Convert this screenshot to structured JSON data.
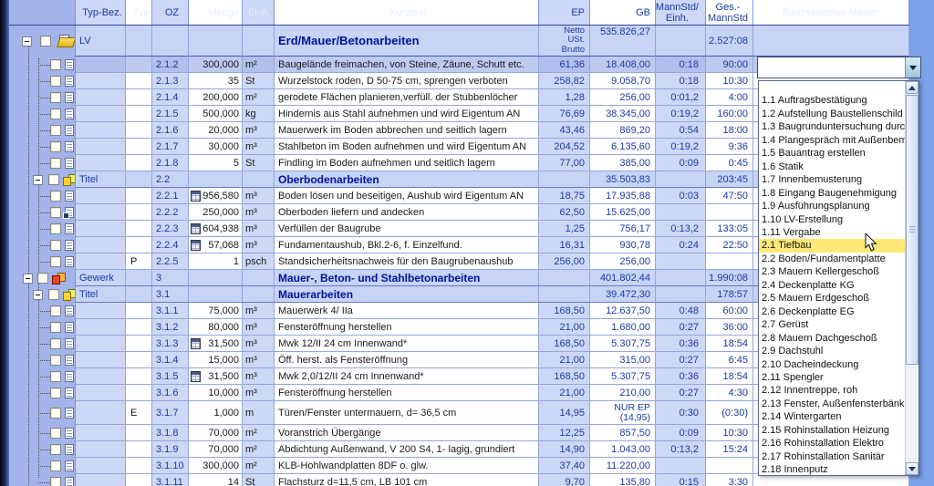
{
  "colors": {
    "header_blue": "#5570cc",
    "group_row": "#c6d4f6",
    "highlight_yellow": "#ffe878",
    "value_navy": "#1c3aa0",
    "window_background": "#7ba2e8"
  },
  "columns": [
    {
      "key": "typbez",
      "label": "Typ-Bez."
    },
    {
      "key": "typ",
      "label": "Typ"
    },
    {
      "key": "oz",
      "label": "OZ"
    },
    {
      "key": "menge",
      "label": "Menge"
    },
    {
      "key": "einh",
      "label": "Einh."
    },
    {
      "key": "kurztext",
      "label": "Kurztext"
    },
    {
      "key": "ep",
      "label": "EP"
    },
    {
      "key": "gb",
      "label": "GB"
    },
    {
      "key": "mannstd",
      "label": "MannStd/\nEinh."
    },
    {
      "key": "ges",
      "label": "Ges.-\nMannStd"
    },
    {
      "key": "bzp",
      "label": "Bauzeitenplan Master"
    }
  ],
  "summary": {
    "typbez": "LV",
    "kurztext": "Erd/Mauer/Betonarbeiten",
    "ep": "Netto\nUSt.\nBrutto",
    "gb": "535.826,27",
    "ges": "2.527:08"
  },
  "rows": [
    {
      "kind": "item",
      "active": true,
      "oz": "2.1.2",
      "menge": "300,000",
      "einh": "m²",
      "kurztext": "Baugelände freimachen, von Steine, Zäune, Schutt etc.",
      "ep": "61,36",
      "gb": "18.408,00",
      "mannstd": "0:18",
      "ges": "90:00"
    },
    {
      "kind": "item",
      "oz": "2.1.3",
      "menge": "35",
      "einh": "St",
      "kurztext": "Wurzelstock roden, D 50-75 cm, sprengen verboten",
      "ep": "258,82",
      "gb": "9.058,70",
      "mannstd": "0:18",
      "ges": "10:30"
    },
    {
      "kind": "item",
      "oz": "2.1.4",
      "menge": "200,000",
      "einh": "m²",
      "kurztext": "gerodete Flächen planieren,verfüll. der Stubbenlöcher",
      "ep": "1,28",
      "gb": "256,00",
      "mannstd": "0:01,2",
      "ges": "4:00"
    },
    {
      "kind": "item",
      "oz": "2.1.5",
      "menge": "500,000",
      "einh": "kg",
      "kurztext": "Hindernis aus Stahl aufnehmen und wird Eigentum AN",
      "ep": "76,69",
      "gb": "38.345,00",
      "mannstd": "0:19,2",
      "ges": "160:00"
    },
    {
      "kind": "item",
      "oz": "2.1.6",
      "menge": "20,000",
      "einh": "m³",
      "kurztext": "Mauerwerk im Boden abbrechen und seitlich lagern",
      "ep": "43,46",
      "gb": "869,20",
      "mannstd": "0:54",
      "ges": "18:00"
    },
    {
      "kind": "item",
      "oz": "2.1.7",
      "menge": "30,000",
      "einh": "m³",
      "kurztext": "Stahlbeton im Boden aufnehmen und wird Eigentum AN",
      "ep": "204,52",
      "gb": "6.135,60",
      "mannstd": "0:19,2",
      "ges": "9:36"
    },
    {
      "kind": "item",
      "oz": "2.1.8",
      "menge": "5",
      "einh": "St",
      "kurztext": "Findling im Boden aufnehmen und seitlich lagern",
      "ep": "77,00",
      "gb": "385,00",
      "mannstd": "0:09",
      "ges": "0:45"
    },
    {
      "kind": "titel",
      "typbez": "Titel",
      "oz": "2.2",
      "kurztext": "Oberbodenarbeiten",
      "gb": "35.503,83",
      "ges": "203:45"
    },
    {
      "kind": "item",
      "oz": "2.2.1",
      "calc": true,
      "menge": "956,580",
      "einh": "m³",
      "kurztext": "Boden lösen und beseitigen, Aushub wird Eigentum AN",
      "ep": "18,75",
      "gb": "17.935,88",
      "mannstd": "0:03",
      "ges": "47:50"
    },
    {
      "kind": "item",
      "icon": "link",
      "oz": "2.2.2",
      "menge": "250,000",
      "einh": "m³",
      "kurztext": "Oberboden liefern und andecken",
      "ep": "62,50",
      "gb": "15.625,00"
    },
    {
      "kind": "item",
      "oz": "2.2.3",
      "calc": true,
      "menge": "604,938",
      "einh": "m³",
      "kurztext": "Verfüllen der Baugrube",
      "ep": "1,25",
      "gb": "756,17",
      "mannstd": "0:13,2",
      "ges": "133:05"
    },
    {
      "kind": "item",
      "oz": "2.2.4",
      "calc": true,
      "menge": "57,068",
      "einh": "m³",
      "kurztext": "Fundamentaushub, Bkl.2-6, f. Einzelfund.",
      "ep": "16,31",
      "gb": "930,78",
      "mannstd": "0:24",
      "ges": "22:50"
    },
    {
      "kind": "item",
      "typ": "P",
      "oz": "2.2.5",
      "menge": "1",
      "einh": "psch",
      "kurztext": "Standsicherheitsnachweis für den Baugrubenaushub",
      "ep": "256,00",
      "gb": "256,00"
    },
    {
      "kind": "gewerk",
      "typbez": "Gewerk",
      "oz": "3",
      "kurztext": "Mauer-, Beton- und Stahlbetonarbeiten",
      "gb": "401.802,44",
      "ges": "1.990:08"
    },
    {
      "kind": "titel",
      "typbez": "Titel",
      "oz": "3.1",
      "kurztext": "Mauerarbeiten",
      "gb": "39.472,30",
      "ges": "178:57"
    },
    {
      "kind": "item",
      "oz": "3.1.1",
      "menge": "75,000",
      "einh": "m³",
      "kurztext": "Mauerwerk 4/ IIa",
      "ep": "168,50",
      "gb": "12.637,50",
      "mannstd": "0:48",
      "ges": "60:00"
    },
    {
      "kind": "item",
      "oz": "3.1.2",
      "menge": "80,000",
      "einh": "m³",
      "kurztext": "Fensteröffnung herstellen",
      "ep": "21,00",
      "gb": "1.680,00",
      "mannstd": "0:27",
      "ges": "36:00"
    },
    {
      "kind": "item",
      "oz": "3.1.3",
      "calc": true,
      "menge": "31,500",
      "einh": "m³",
      "kurztext": "Mwk 12/II 24 cm Innenwand*",
      "ep": "168,50",
      "gb": "5.307,75",
      "mannstd": "0:36",
      "ges": "18:54"
    },
    {
      "kind": "item",
      "oz": "3.1.4",
      "menge": "15,000",
      "einh": "m³",
      "kurztext": "Öff. herst. als Fensteröffnung",
      "ep": "21,00",
      "gb": "315,00",
      "mannstd": "0:27",
      "ges": "6:45"
    },
    {
      "kind": "item",
      "oz": "3.1.5",
      "calc": true,
      "menge": "31,500",
      "einh": "m³",
      "kurztext": "Mwk 2,0/12/II 24 cm Innenwand*",
      "ep": "168,50",
      "gb": "5.307,75",
      "mannstd": "0:36",
      "ges": "18:54"
    },
    {
      "kind": "item",
      "oz": "3.1.6",
      "menge": "10,000",
      "einh": "m³",
      "kurztext": "Fensteröffnung herstellen",
      "ep": "21,00",
      "gb": "210,00",
      "mannstd": "0:27",
      "ges": "4:30"
    },
    {
      "kind": "item",
      "tall": true,
      "typ": "E",
      "oz": "3.1.7",
      "menge": "1,000",
      "einh": "m",
      "kurztext": "Türen/Fenster untermauern, d= 36,5 cm",
      "ep": "14,95",
      "gb": "NUR EP\n(14,95)",
      "mannstd": "0:30",
      "ges": "(0:30)"
    },
    {
      "kind": "item",
      "oz": "3.1.8",
      "menge": "70,000",
      "einh": "m²",
      "kurztext": "Voranstrich Übergänge",
      "ep": "12,25",
      "gb": "857,50",
      "mannstd": "0:09",
      "ges": "10:30"
    },
    {
      "kind": "item",
      "oz": "3.1.9",
      "menge": "70,000",
      "einh": "m²",
      "kurztext": "Abdichtung Außenwand, V 200 S4, 1- lagig, grundiert",
      "ep": "14,90",
      "gb": "1.043,00",
      "mannstd": "0:13,2",
      "ges": "15:24"
    },
    {
      "kind": "item",
      "oz": "3.1.10",
      "menge": "300,000",
      "einh": "m²",
      "kurztext": "KLB-Hohlwandplatten 8DF o. glw.",
      "ep": "37,40",
      "gb": "11.220,00"
    },
    {
      "kind": "item",
      "oz": "3.1.11",
      "menge": "14",
      "einh": "St",
      "kurztext": "Flachsturz d=11,5 cm, LB 101 cm",
      "ep": "9,70",
      "gb": "135,80",
      "mannstd": "0:15",
      "ges": "3:30"
    }
  ],
  "combobox": {
    "value": ""
  },
  "dropdown": {
    "highlighted": "2.1 Tiefbau",
    "items": [
      "",
      "1.1 Auftragsbestätigung",
      "1.2 Aufstellung Baustellenschild",
      "1.3 Baugrunduntersuchung durc",
      "1.4 Plangespräch mit Außenbem",
      "1.5 Bauantrag erstellen",
      "1.6 Statik",
      "1.7 Innenbemusterung",
      "1.8 Eingang Baugenehmigung",
      "1.9 Ausführungsplanung",
      "1.10 LV-Erstellung",
      "1.11 Vergabe",
      "2.1 Tiefbau",
      "2.2 Boden/Fundamentplatte",
      "2.3 Mauern Kellergeschoß",
      "2.4 Deckenplatte KG",
      "2.5 Mauern Erdgeschoß",
      "2.6 Deckenplatte EG",
      "2.7 Gerüst",
      "2.8 Mauern Dachgeschoß",
      "2.9 Dachstuhl",
      "2.10 Dacheindeckung",
      "2.11 Spengler",
      "2.12 Innentreppe, roh",
      "2.13 Fenster, Außenfensterbänk",
      "2.14 Wintergarten",
      "2.15 Rohinstallation Heizung",
      "2.16 Rohinstallation Elektro",
      "2.17 Rohinstallation Sanitär",
      "2.18 Innenputz"
    ]
  }
}
